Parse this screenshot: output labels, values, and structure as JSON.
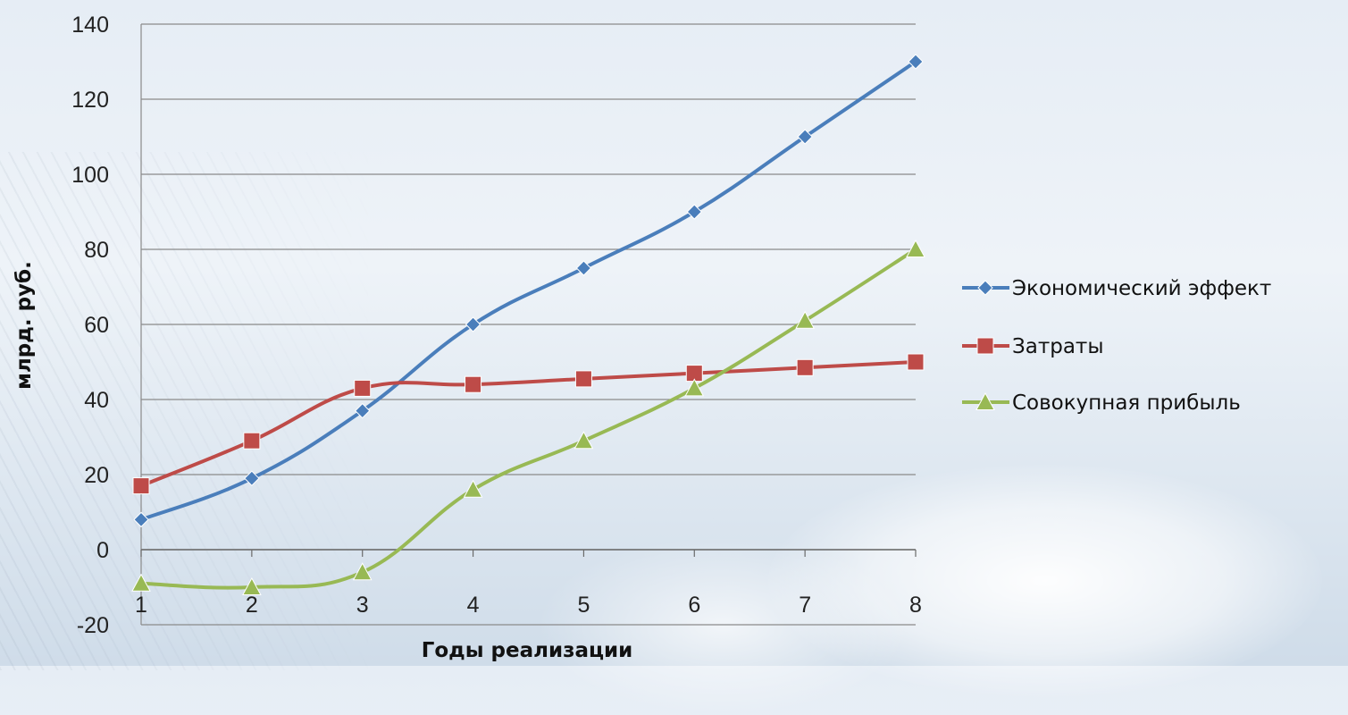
{
  "chart_data": {
    "type": "line",
    "title": "",
    "xlabel": "Годы реализации",
    "ylabel": "млрд. руб.",
    "categories": [
      "1",
      "2",
      "3",
      "4",
      "5",
      "6",
      "7",
      "8"
    ],
    "ylim": [
      -20,
      140
    ],
    "yticks": [
      "-20",
      "0",
      "20",
      "40",
      "60",
      "80",
      "100",
      "120",
      "140"
    ],
    "grid": true,
    "legend_position": "right",
    "smooth": true,
    "series": [
      {
        "name": "Экономический эффект",
        "values": [
          8,
          19,
          37,
          60,
          75,
          90,
          110,
          130
        ],
        "color": "#4a7ebb",
        "marker": "diamond"
      },
      {
        "name": "Затраты",
        "values": [
          17,
          29,
          43,
          44,
          45.5,
          47,
          48.5,
          50
        ],
        "color": "#be4b48",
        "marker": "square"
      },
      {
        "name": "Совокупная прибыль",
        "values": [
          -9,
          -10,
          -6,
          16,
          29,
          43,
          61,
          80
        ],
        "color": "#98b954",
        "marker": "triangle"
      }
    ]
  }
}
